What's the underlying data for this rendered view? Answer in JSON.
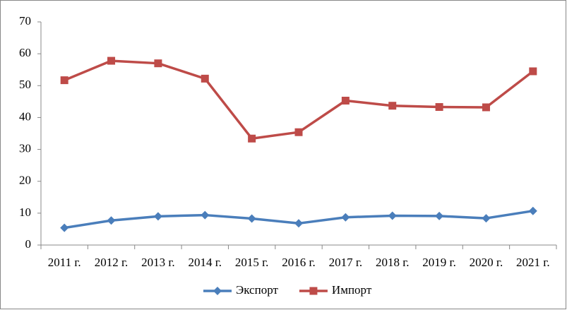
{
  "chart_data": {
    "type": "line",
    "categories": [
      "2011 г.",
      "2012 г.",
      "2013 г.",
      "2014 г.",
      "2015 г.",
      "2016 г.",
      "2017 г.",
      "2018 г.",
      "2019 г.",
      "2020 г.",
      "2021 г."
    ],
    "series": [
      {
        "name": "Экспорт",
        "color": "#4a7ebb",
        "marker": "diamond",
        "values": [
          5.4,
          7.7,
          9.0,
          9.4,
          8.3,
          6.8,
          8.7,
          9.2,
          9.1,
          8.4,
          10.7
        ]
      },
      {
        "name": "Импорт",
        "color": "#be4b48",
        "marker": "square",
        "values": [
          51.7,
          57.8,
          57.0,
          52.2,
          33.4,
          35.4,
          45.3,
          43.7,
          43.3,
          43.2,
          54.5
        ]
      }
    ],
    "ylim": [
      0,
      70
    ],
    "yticks": [
      0,
      10,
      20,
      30,
      40,
      50,
      60,
      70
    ],
    "grid": false,
    "legend": "bottom"
  }
}
